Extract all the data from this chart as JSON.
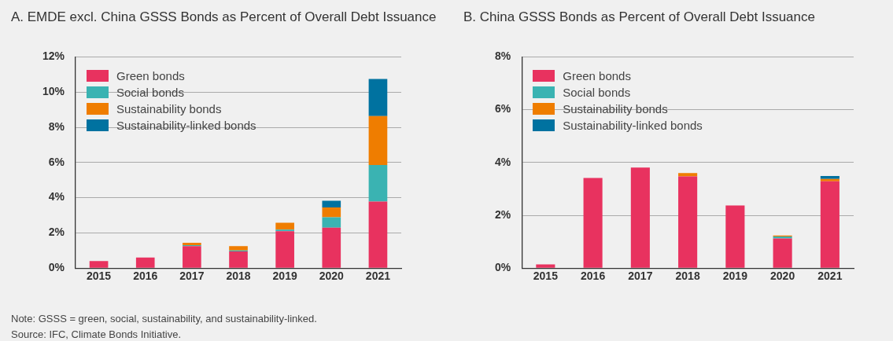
{
  "chart_data": [
    {
      "type": "bar",
      "title": "A. EMDE excl. China GSSS Bonds as Percent of Overall Debt Issuance",
      "categories": [
        "2015",
        "2016",
        "2017",
        "2018",
        "2019",
        "2020",
        "2021"
      ],
      "stacked": true,
      "series": [
        {
          "name": "Green bonds",
          "color": "#e8325f",
          "values": [
            0.4,
            0.6,
            1.25,
            0.95,
            2.1,
            2.3,
            3.78
          ]
        },
        {
          "name": "Social bonds",
          "color": "#3ab3b2",
          "values": [
            0,
            0,
            0.05,
            0.05,
            0.08,
            0.59,
            2.08
          ]
        },
        {
          "name": "Sustainability bonds",
          "color": "#ef7d00",
          "values": [
            0,
            0,
            0.14,
            0.25,
            0.4,
            0.56,
            2.78
          ]
        },
        {
          "name": "Sustainability-linked bonds",
          "color": "#0072a0",
          "values": [
            0,
            0,
            0,
            0,
            0,
            0.38,
            2.11
          ]
        }
      ],
      "ylim": [
        0,
        12
      ],
      "yticks": [
        {
          "value": 0,
          "label": "0%"
        },
        {
          "value": 2,
          "label": "2%"
        },
        {
          "value": 4,
          "label": "4%"
        },
        {
          "value": 6,
          "label": "6%"
        },
        {
          "value": 8,
          "label": "8%"
        },
        {
          "value": 10,
          "label": "10%"
        },
        {
          "value": 12,
          "label": "12%"
        }
      ],
      "grid": "y",
      "legend": "top left",
      "annotations": [
        "Note: GSSS = green, social, sustainability, and sustainability-linked.",
        "Source: IFC, Climate Bonds Initiative."
      ]
    },
    {
      "type": "bar",
      "title": "B. China GSSS Bonds as Percent of Overall Debt Issuance",
      "categories": [
        "2015",
        "2016",
        "2017",
        "2018",
        "2019",
        "2020",
        "2021"
      ],
      "stacked": true,
      "series": [
        {
          "name": "Green bonds",
          "color": "#e8325f",
          "values": [
            0.14,
            3.41,
            3.81,
            3.47,
            2.37,
            1.12,
            3.29
          ]
        },
        {
          "name": "Social bonds",
          "color": "#3ab3b2",
          "values": [
            0,
            0,
            0,
            null,
            0,
            0.08,
            0
          ]
        },
        {
          "name": "Sustainability bonds",
          "color": "#ef7d00",
          "values": [
            0,
            0,
            0,
            0.13,
            0,
            0.03,
            0.09
          ]
        },
        {
          "name": "Sustainability-linked bonds",
          "color": "#0072a0",
          "values": [
            0,
            0,
            0,
            0,
            0,
            0,
            0.11
          ]
        }
      ],
      "ylim": [
        0,
        8
      ],
      "yticks": [
        {
          "value": 0,
          "label": "0%"
        },
        {
          "value": 2,
          "label": "2%"
        },
        {
          "value": 4,
          "label": "4%"
        },
        {
          "value": 6,
          "label": "6%"
        },
        {
          "value": 8,
          "label": "8%"
        }
      ],
      "grid": "y",
      "legend": "top left"
    }
  ]
}
